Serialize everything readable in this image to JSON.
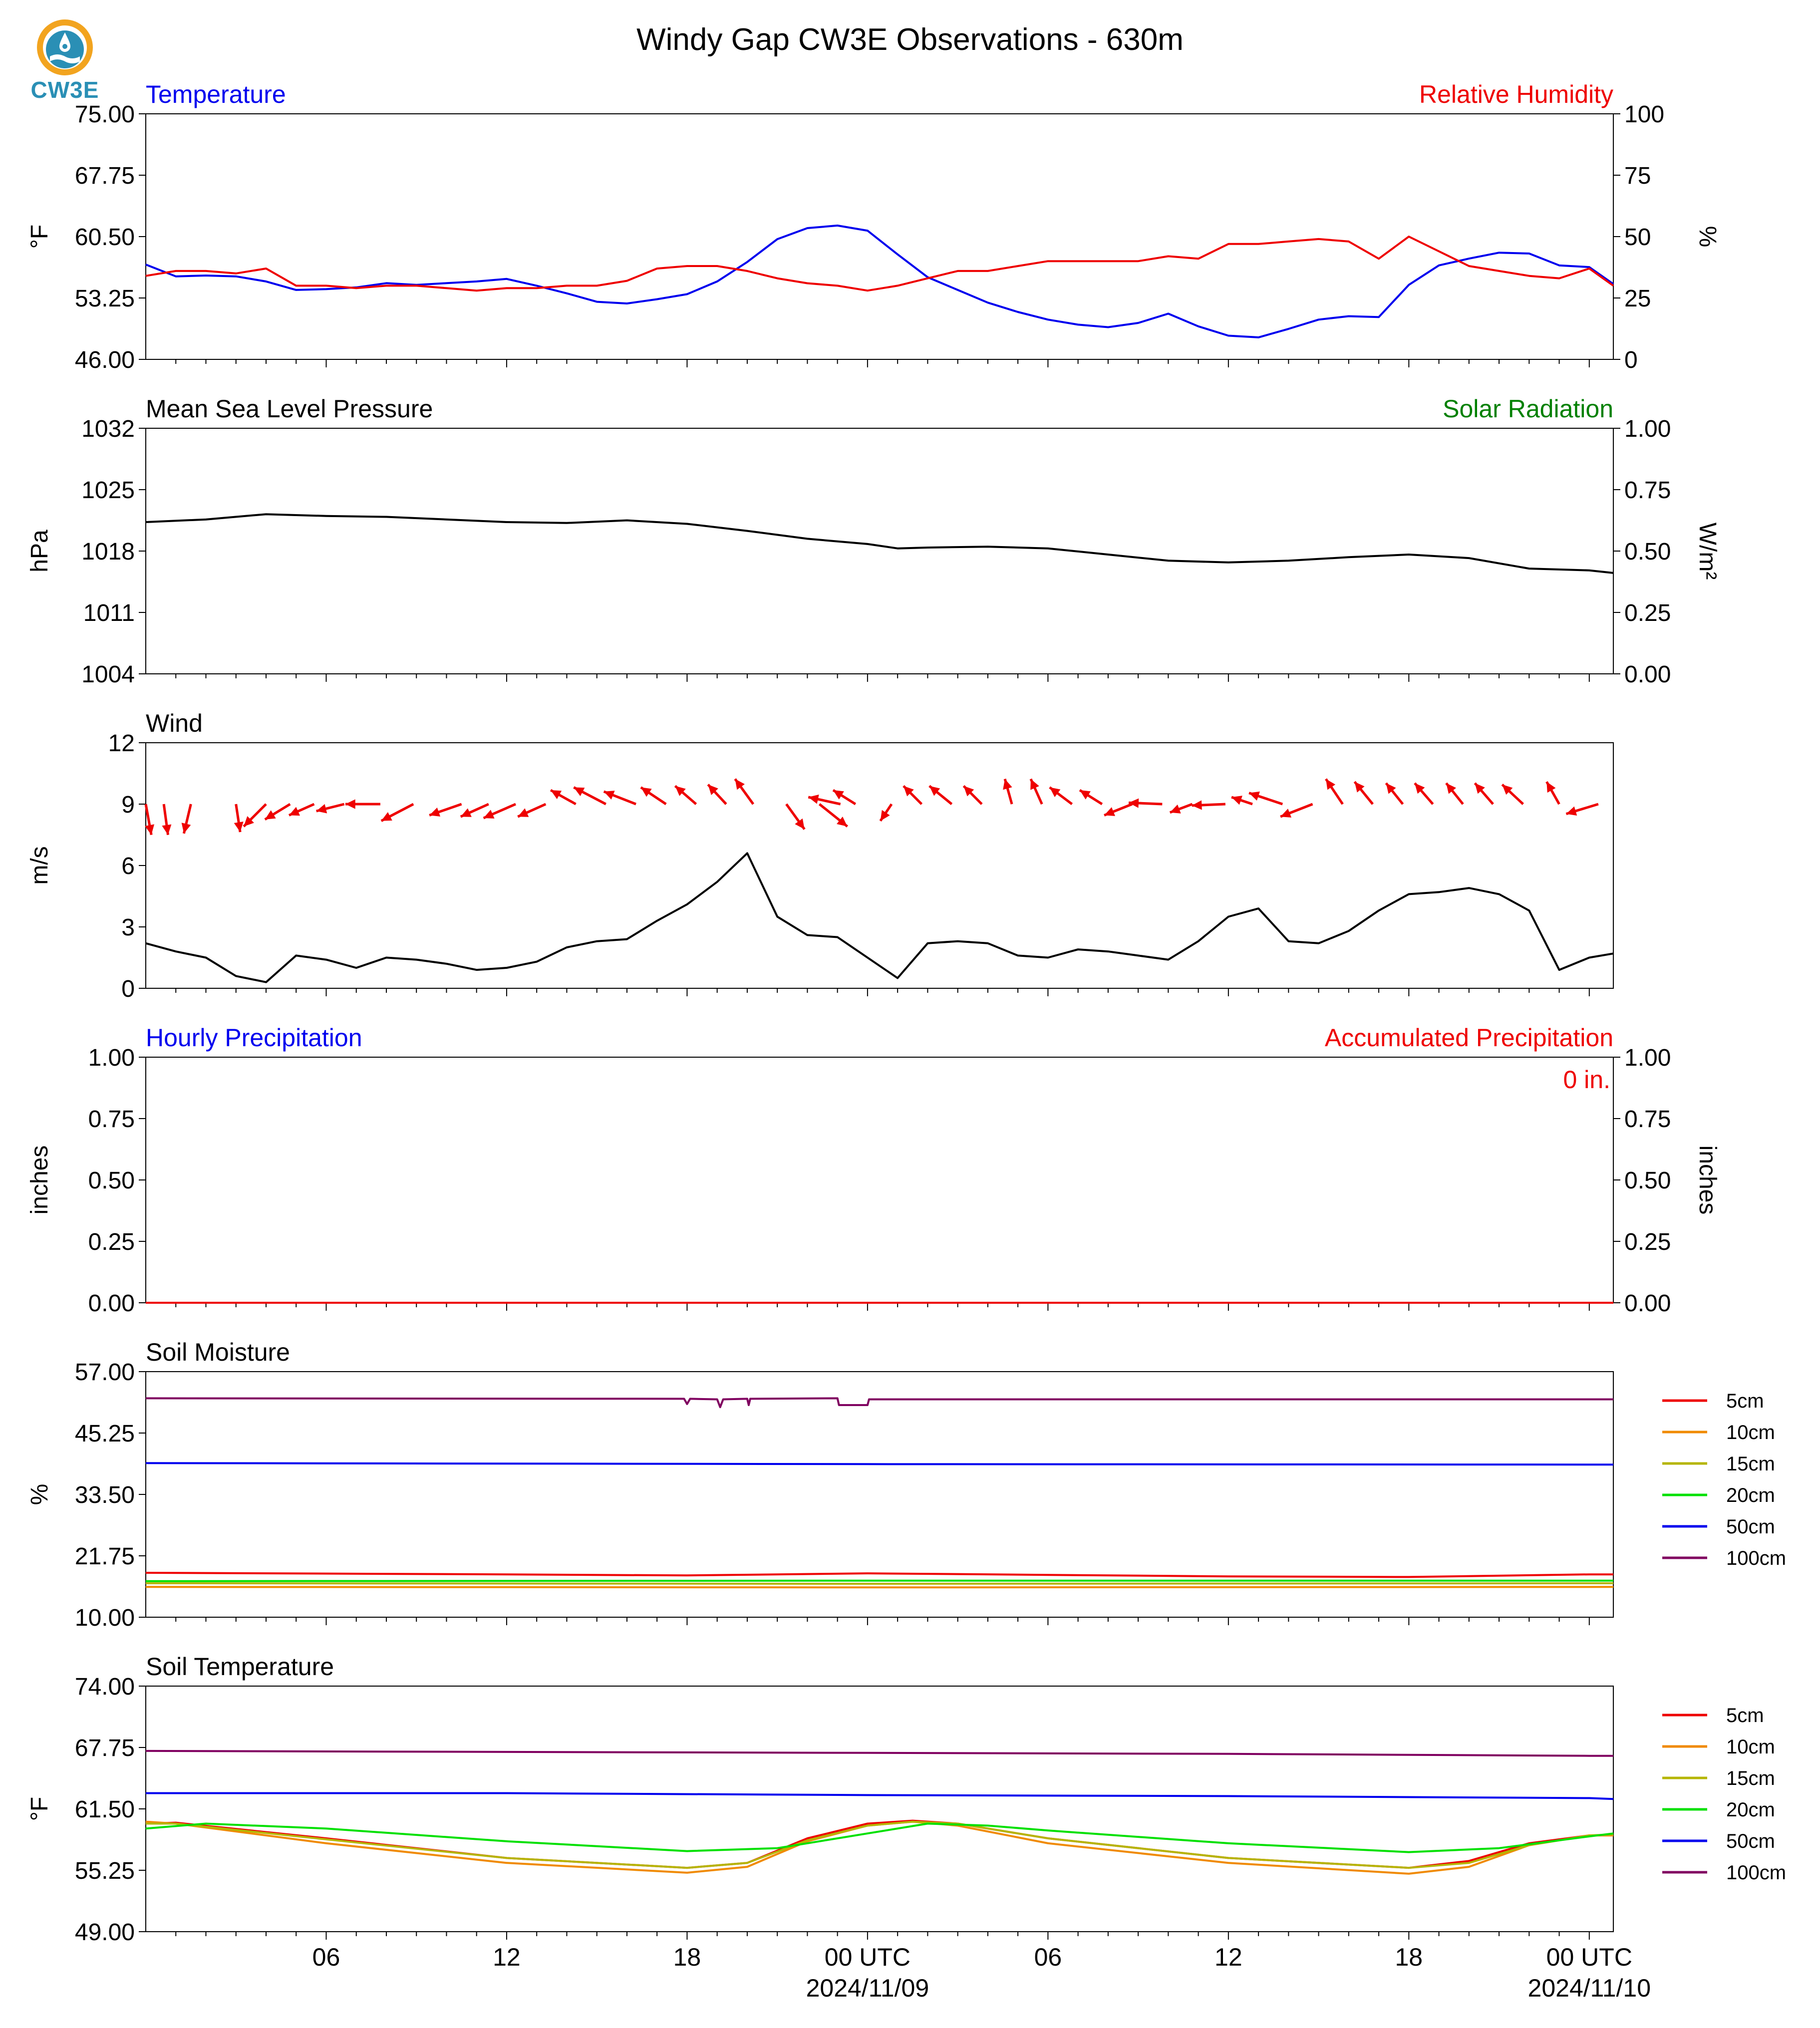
{
  "title": "Windy Gap CW3E Observations - 630m",
  "logo": {
    "text": "CW3E",
    "icon": "cw3e-logo-icon"
  },
  "colors": {
    "blue": "#0000ee",
    "red": "#ee0000",
    "green": "#008000",
    "black": "#000000"
  },
  "time_axis": {
    "range_hours": [
      -24,
      24
    ],
    "ticks": [
      {
        "h": -18,
        "label": "06"
      },
      {
        "h": -12,
        "label": "12"
      },
      {
        "h": -6,
        "label": "18"
      },
      {
        "h": 0,
        "label": "00 UTC",
        "date": "2024/11/09"
      },
      {
        "h": 6,
        "label": "06"
      },
      {
        "h": 12,
        "label": "12"
      },
      {
        "h": 18,
        "label": "18"
      },
      {
        "h": 24,
        "label": "00 UTC",
        "date": "2024/11/10"
      }
    ]
  },
  "chart_data": [
    {
      "type": "line",
      "id": "temp_rh",
      "title_left": "Temperature",
      "title_right": "Relative Humidity",
      "ylabel": "°F",
      "ylabel_right": "%",
      "ylim": [
        46,
        75
      ],
      "ylim_right": [
        0,
        100
      ],
      "yticks": [
        "75.00",
        "67.75",
        "60.50",
        "53.25",
        "46.00"
      ],
      "yticks_right": [
        "100",
        "75",
        "50",
        "25",
        "0"
      ],
      "series": [
        {
          "name": "Temperature",
          "axis": "left",
          "color": "#0000ee",
          "x": [
            -24,
            -23,
            -22,
            -21,
            -20,
            -19,
            -18,
            -17,
            -16,
            -15,
            -14,
            -13,
            -12,
            -11,
            -10,
            -9,
            -8,
            -7,
            -6,
            -5,
            -4,
            -3,
            -2,
            -1,
            0,
            1,
            2,
            3,
            4,
            5,
            6,
            7,
            8,
            9,
            10,
            11,
            12,
            13,
            14,
            15,
            16,
            17,
            18,
            19,
            20,
            21,
            22,
            23,
            24,
            24.8
          ],
          "y": [
            57.2,
            55.8,
            55.9,
            55.8,
            55.2,
            54.2,
            54.3,
            54.5,
            55.0,
            54.8,
            55.0,
            55.2,
            55.5,
            54.7,
            53.8,
            52.8,
            52.6,
            53.1,
            53.7,
            55.2,
            57.5,
            60.2,
            61.5,
            61.8,
            61.2,
            58.4,
            55.7,
            54.2,
            52.7,
            51.6,
            50.7,
            50.1,
            49.8,
            50.3,
            51.4,
            49.9,
            48.8,
            48.6,
            49.6,
            50.7,
            51.1,
            51.0,
            54.8,
            57.1,
            57.9,
            58.6,
            58.5,
            57.1,
            56.9,
            54.9
          ]
        },
        {
          "name": "Relative Humidity",
          "axis": "right",
          "color": "#ee0000",
          "x": [
            -24,
            -23,
            -22,
            -21,
            -20,
            -19,
            -18,
            -17,
            -16,
            -15,
            -14,
            -13,
            -12,
            -11,
            -10,
            -9,
            -8,
            -7,
            -6,
            -5,
            -4,
            -3,
            -2,
            -1,
            0,
            1,
            2,
            3,
            4,
            5,
            6,
            7,
            8,
            9,
            10,
            11,
            12,
            13,
            14,
            15,
            16,
            17,
            18,
            19,
            20,
            21,
            22,
            23,
            24,
            24.8
          ],
          "y": [
            34,
            36,
            36,
            35,
            37,
            30,
            30,
            29,
            30,
            30,
            29,
            28,
            29,
            29,
            30,
            30,
            32,
            37,
            38,
            38,
            36,
            33,
            31,
            30,
            28,
            30,
            33,
            36,
            36,
            38,
            40,
            40,
            40,
            40,
            42,
            41,
            47,
            47,
            48,
            49,
            48,
            41,
            50,
            44,
            38,
            36,
            34,
            33,
            37,
            30
          ]
        }
      ]
    },
    {
      "type": "line",
      "id": "pressure",
      "title_left": "Mean Sea Level Pressure",
      "title_right": "Solar Radiation",
      "ylabel": "hPa",
      "ylabel_right": "W/m²",
      "ylim": [
        1004,
        1032
      ],
      "ylim_right": [
        0,
        1
      ],
      "yticks": [
        "1032",
        "1025",
        "1018",
        "1011",
        "1004"
      ],
      "yticks_right": [
        "1.00",
        "0.75",
        "0.50",
        "0.25",
        "0.00"
      ],
      "series": [
        {
          "name": "Mean Sea Level Pressure",
          "axis": "left",
          "color": "#000000",
          "x": [
            -24,
            -22,
            -20,
            -18,
            -16,
            -14,
            -12,
            -10,
            -8,
            -6,
            -4,
            -2,
            0,
            1,
            2,
            4,
            6,
            8,
            10,
            12,
            14,
            16,
            18,
            20,
            22,
            24,
            24.8
          ],
          "y": [
            1021.3,
            1021.6,
            1022.2,
            1022.0,
            1021.9,
            1021.6,
            1021.3,
            1021.2,
            1021.5,
            1021.1,
            1020.3,
            1019.4,
            1018.8,
            1018.3,
            1018.4,
            1018.5,
            1018.3,
            1017.6,
            1016.9,
            1016.7,
            1016.9,
            1017.3,
            1017.6,
            1017.2,
            1016.0,
            1015.8,
            1015.5
          ]
        }
      ]
    },
    {
      "type": "line",
      "id": "wind",
      "title_left": "Wind",
      "ylabel": "m/s",
      "ylim": [
        0,
        12
      ],
      "yticks": [
        "12",
        "9",
        "6",
        "3",
        "0"
      ],
      "series": [
        {
          "name": "Wind",
          "axis": "left",
          "color": "#000000",
          "x": [
            -24,
            -23,
            -22,
            -21,
            -20,
            -19,
            -18,
            -17,
            -16,
            -15,
            -14,
            -13,
            -12,
            -11,
            -10,
            -9,
            -8,
            -7,
            -6,
            -5,
            -4,
            -3,
            -2,
            -1,
            0,
            1,
            2,
            3,
            4,
            5,
            6,
            7,
            8,
            9,
            10,
            11,
            12,
            13,
            14,
            15,
            16,
            17,
            18,
            19,
            20,
            21,
            22,
            23,
            24,
            24.8
          ],
          "y": [
            2.2,
            1.8,
            1.5,
            0.6,
            0.3,
            1.6,
            1.4,
            1.0,
            1.5,
            1.4,
            1.2,
            0.9,
            1.0,
            1.3,
            2.0,
            2.3,
            2.4,
            3.3,
            4.1,
            5.2,
            6.6,
            3.5,
            2.6,
            2.5,
            1.5,
            0.5,
            2.2,
            2.3,
            2.2,
            1.6,
            1.5,
            1.9,
            1.8,
            1.6,
            1.4,
            2.3,
            3.5,
            3.9,
            2.3,
            2.2,
            2.8,
            3.8,
            4.6,
            4.7,
            4.9,
            4.6,
            3.8,
            0.9,
            1.5,
            1.7
          ]
        }
      ],
      "barbs": {
        "color": "#ee0000",
        "x": [
          -24,
          -23.4,
          -22.5,
          -21,
          -20,
          -19.2,
          -18.4,
          -17.4,
          -16.2,
          -15.1,
          -13.5,
          -12.6,
          -11.7,
          -10.7,
          -9.7,
          -8.7,
          -7.7,
          -6.7,
          -5.7,
          -4.7,
          -3.8,
          -2.7,
          -1.6,
          -0.9,
          -0.4,
          0.8,
          1.8,
          2.8,
          3.8,
          4.8,
          5.8,
          6.8,
          7.8,
          8.8,
          9.8,
          10.8,
          11.9,
          12.8,
          13.8,
          14.8,
          15.8,
          16.8,
          17.8,
          18.8,
          19.8,
          20.8,
          21.8,
          23.0,
          24.3
        ],
        "y": [
          9,
          9,
          9,
          9,
          9,
          9,
          9,
          9,
          9,
          9,
          9,
          9,
          9,
          9,
          9,
          9,
          9,
          9,
          9,
          9,
          9,
          9,
          9,
          9,
          9,
          9,
          9,
          9,
          9,
          9,
          9,
          9,
          9,
          9,
          9,
          9,
          9,
          9,
          9,
          9,
          9,
          9,
          9,
          9,
          9,
          9,
          9,
          9,
          9
        ],
        "u": [
          0.4,
          0.3,
          -0.5,
          0.3,
          -1.6,
          -1.8,
          -1.8,
          -2.0,
          -2.5,
          -2.3,
          -2.3,
          -2.0,
          -2.3,
          -2.0,
          -1.8,
          -2.3,
          -2.3,
          -1.8,
          -1.5,
          -1.3,
          -1.3,
          1.3,
          2.0,
          -2.3,
          -1.6,
          -0.8,
          -1.3,
          -1.6,
          -1.3,
          -0.5,
          -0.8,
          -1.6,
          -1.6,
          -2.0,
          -2.4,
          -1.6,
          -2.4,
          -1.5,
          -2.4,
          -2.3,
          -1.2,
          -1.3,
          -1.2,
          -1.3,
          -1.2,
          -1.3,
          -1.5,
          -0.9,
          -2.3
        ],
        "v": [
          -2.2,
          -2.2,
          -2.1,
          -2.0,
          -1.6,
          -1.1,
          -0.8,
          -0.5,
          0.0,
          -1.2,
          -0.8,
          -0.9,
          -1.0,
          -0.9,
          1.0,
          1.2,
          0.9,
          1.2,
          1.3,
          1.4,
          1.8,
          -1.8,
          -1.6,
          0.5,
          1.0,
          -1.2,
          1.3,
          1.3,
          1.3,
          1.8,
          1.8,
          1.2,
          1.0,
          -0.8,
          0.1,
          -0.6,
          -0.1,
          0.5,
          0.8,
          -0.9,
          1.8,
          1.6,
          1.5,
          1.5,
          1.5,
          1.5,
          1.4,
          1.6,
          -0.7
        ]
      }
    },
    {
      "type": "line",
      "id": "precip",
      "title_left": "Hourly Precipitation",
      "title_right": "Accumulated Precipitation",
      "annotation": "0 in.",
      "ylabel": "inches",
      "ylabel_right": "inches",
      "ylim": [
        0,
        1
      ],
      "ylim_right": [
        0,
        1
      ],
      "yticks": [
        "1.00",
        "0.75",
        "0.50",
        "0.25",
        "0.00"
      ],
      "yticks_right": [
        "1.00",
        "0.75",
        "0.50",
        "0.25",
        "0.00"
      ],
      "series": [
        {
          "name": "Hourly Precipitation",
          "axis": "left",
          "color": "#0000ee",
          "x": [
            -24,
            24.8
          ],
          "y": [
            0,
            0
          ]
        },
        {
          "name": "Accumulated Precipitation",
          "axis": "right",
          "color": "#ee0000",
          "x": [
            -24,
            24.8
          ],
          "y": [
            0,
            0
          ]
        }
      ]
    },
    {
      "type": "line",
      "id": "soil_moisture",
      "title_left": "Soil Moisture",
      "ylabel": "%",
      "ylim": [
        10,
        57
      ],
      "yticks": [
        "57.00",
        "45.25",
        "33.50",
        "21.75",
        "10.00"
      ],
      "legend": [
        "5cm",
        "10cm",
        "15cm",
        "20cm",
        "50cm",
        "100cm"
      ],
      "series": [
        {
          "name": "5cm",
          "color": "#ee0000",
          "x": [
            -24,
            -12,
            -6,
            0,
            6,
            12,
            18,
            24,
            24.8
          ],
          "y": [
            18.5,
            18.2,
            18.0,
            18.4,
            18.1,
            17.8,
            17.7,
            18.2,
            18.2
          ]
        },
        {
          "name": "10cm",
          "color": "#f08a00",
          "x": [
            -24,
            0,
            24.8
          ],
          "y": [
            15.8,
            15.7,
            15.8
          ]
        },
        {
          "name": "15cm",
          "color": "#b5b500",
          "x": [
            -24,
            0,
            24.8
          ],
          "y": [
            16.5,
            16.4,
            16.5
          ]
        },
        {
          "name": "20cm",
          "color": "#00e000",
          "x": [
            -24,
            0,
            24.8
          ],
          "y": [
            16.9,
            17.0,
            17.0
          ]
        },
        {
          "name": "50cm",
          "color": "#0000ee",
          "x": [
            -24,
            0,
            24.8
          ],
          "y": [
            39.5,
            39.3,
            39.2
          ]
        },
        {
          "name": "100cm",
          "color": "#800060",
          "x": [
            -24,
            -6.1,
            -6,
            -5.9,
            -5,
            -4.9,
            -4.8,
            -4,
            -3.95,
            -3.9,
            -1,
            -0.95,
            0,
            0.05,
            24.8
          ],
          "y": [
            51.9,
            51.8,
            50.8,
            51.8,
            51.7,
            50.2,
            51.7,
            51.8,
            50.6,
            51.8,
            51.9,
            50.6,
            50.6,
            51.7,
            51.7
          ]
        }
      ]
    },
    {
      "type": "line",
      "id": "soil_temp",
      "title_left": "Soil Temperature",
      "ylabel": "°F",
      "ylim": [
        49,
        74
      ],
      "yticks": [
        "74.00",
        "67.75",
        "61.50",
        "55.25",
        "49.00"
      ],
      "legend": [
        "5cm",
        "10cm",
        "15cm",
        "20cm",
        "50cm",
        "100cm"
      ],
      "series": [
        {
          "name": "5cm",
          "color": "#ee0000",
          "x": [
            -24,
            -23,
            -18,
            -12,
            -6,
            -4,
            -2,
            0,
            1.5,
            3,
            6,
            12,
            18,
            20,
            22,
            24,
            24.8
          ],
          "y": [
            60.0,
            60.1,
            58.5,
            56.5,
            55.5,
            56.0,
            58.5,
            60.0,
            60.3,
            60.0,
            58.5,
            56.5,
            55.5,
            56.2,
            58.0,
            58.8,
            58.8
          ]
        },
        {
          "name": "10cm",
          "color": "#f08a00",
          "x": [
            -24,
            -23,
            -18,
            -12,
            -6,
            -4,
            -2,
            0,
            1.5,
            3,
            6,
            12,
            18,
            20,
            22,
            24,
            24.8
          ],
          "y": [
            60.2,
            60.0,
            58.0,
            56.0,
            55.0,
            55.6,
            58.2,
            59.8,
            60.2,
            59.8,
            58.0,
            56.0,
            54.9,
            55.6,
            57.8,
            58.8,
            58.8
          ]
        },
        {
          "name": "15cm",
          "color": "#b5b500",
          "x": [
            -24,
            -23,
            -18,
            -12,
            -6,
            -4,
            -2,
            0,
            1.5,
            3,
            6,
            12,
            18,
            20,
            22,
            24,
            24.8
          ],
          "y": [
            60.0,
            60.0,
            58.4,
            56.5,
            55.5,
            56.0,
            58.3,
            59.8,
            60.2,
            60.0,
            58.5,
            56.5,
            55.5,
            56.0,
            57.8,
            58.8,
            58.9
          ]
        },
        {
          "name": "20cm",
          "color": "#00e000",
          "x": [
            -24,
            -22,
            -18,
            -12,
            -6,
            -3,
            0,
            2,
            4,
            6,
            12,
            18,
            21,
            24,
            24.8
          ],
          "y": [
            59.5,
            60.0,
            59.5,
            58.2,
            57.2,
            57.5,
            59.0,
            60.0,
            59.8,
            59.3,
            58.0,
            57.1,
            57.5,
            58.7,
            59.0
          ]
        },
        {
          "name": "50cm",
          "color": "#0000ee",
          "x": [
            -24,
            -12,
            0,
            12,
            24,
            24.8
          ],
          "y": [
            63.1,
            63.1,
            62.9,
            62.8,
            62.6,
            62.5
          ]
        },
        {
          "name": "100cm",
          "color": "#800060",
          "x": [
            -24,
            -12,
            0,
            12,
            24,
            24.8
          ],
          "y": [
            67.4,
            67.3,
            67.2,
            67.1,
            66.9,
            66.9
          ]
        }
      ]
    }
  ]
}
